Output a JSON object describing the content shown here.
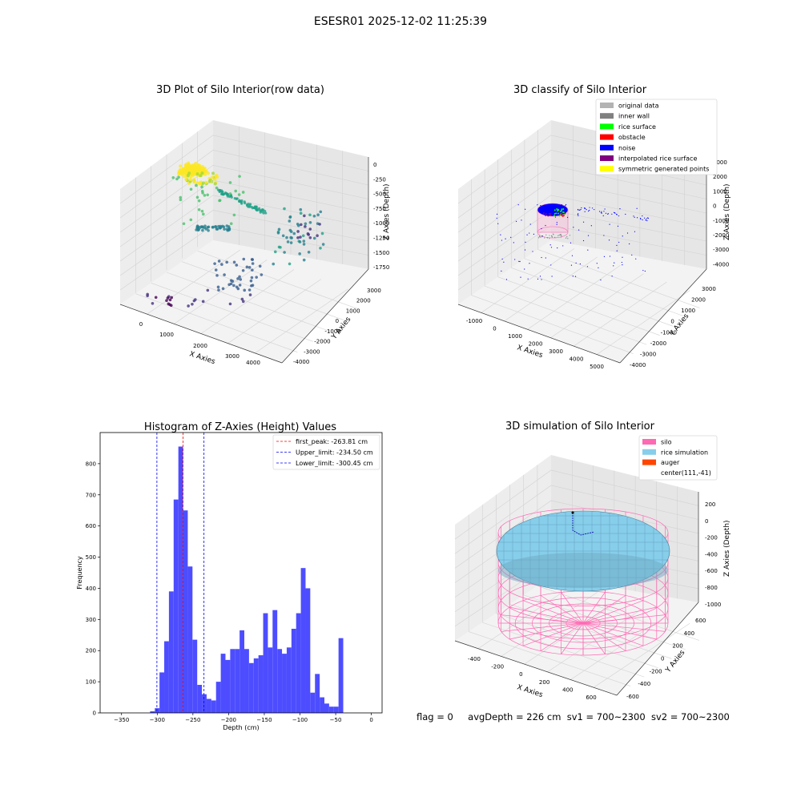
{
  "figure_title": "ESESR01 2025-12-02 11:25:39",
  "status": {
    "flag": "flag = 0",
    "avg_depth": "avgDepth = 226 cm",
    "sv1": "sv1 = 700~2300",
    "sv2": "sv2 = 700~2300"
  },
  "chart_data": [
    {
      "type": "scatter",
      "title": "3D Plot of Silo Interior(row data)",
      "xlabel": "X Axies",
      "ylabel": "Y Axies",
      "zlabel": "Z Axies (Depth)",
      "x_ticks": [
        "0",
        "1000",
        "2000",
        "3000",
        "4000"
      ],
      "y_ticks": [
        "-4000",
        "-3000",
        "-2000",
        "-1000",
        "0",
        "1000",
        "2000",
        "3000"
      ],
      "z_ticks": [
        "0",
        "-250",
        "-500",
        "-750",
        "-1000",
        "-1250",
        "-1500",
        "-1750"
      ],
      "xlim": [
        -500,
        4500
      ],
      "ylim": [
        -4500,
        3500
      ],
      "zlim": [
        -1900,
        100
      ],
      "colormap": "viridis",
      "grid": true
    },
    {
      "type": "scatter",
      "title": "3D classify of Silo Interior",
      "xlabel": "X Axies",
      "ylabel": "Y Axies",
      "zlabel": "Z Axies (Depth)",
      "x_ticks": [
        "-1000",
        "0",
        "1000",
        "2000",
        "3000",
        "4000",
        "5000"
      ],
      "y_ticks": [
        "-4000",
        "-3000",
        "-2000",
        "-1000",
        "0",
        "1000",
        "2000",
        "3000"
      ],
      "z_ticks": [
        "3000",
        "2000",
        "1000",
        "0",
        "-1000",
        "-2000",
        "-3000",
        "-4000"
      ],
      "legend_position": "top-right",
      "legend": [
        {
          "label": "original data",
          "color": "#b3b3b3"
        },
        {
          "label": "inner wall",
          "color": "#808080"
        },
        {
          "label": "rice surface",
          "color": "#00ff00"
        },
        {
          "label": "obstacle",
          "color": "#ff0000"
        },
        {
          "label": "noise",
          "color": "#0000ff"
        },
        {
          "label": "interpolated rice surface",
          "color": "#800080"
        },
        {
          "label": "symmetric generated points",
          "color": "#ffff00"
        }
      ],
      "grid": true
    },
    {
      "type": "bar",
      "title": "Histogram of Z-Axies (Height) Values",
      "xlabel": "Depth (cm)",
      "ylabel": "Frequency",
      "xlim": [
        -380,
        15
      ],
      "ylim": [
        0,
        900
      ],
      "x_ticks": [
        -350,
        -300,
        -250,
        -200,
        -150,
        -100,
        -50,
        0
      ],
      "y_ticks": [
        0,
        100,
        200,
        300,
        400,
        500,
        600,
        700,
        800
      ],
      "bin_width": 6.6,
      "bin_start": -310,
      "values": [
        5,
        15,
        130,
        230,
        390,
        685,
        855,
        650,
        470,
        235,
        90,
        60,
        45,
        40,
        100,
        190,
        170,
        205,
        205,
        265,
        205,
        160,
        175,
        185,
        320,
        210,
        330,
        205,
        190,
        210,
        270,
        320,
        465,
        400,
        65,
        125,
        50,
        30,
        20,
        20,
        240
      ],
      "lines": [
        {
          "label": "first_peak: -263.81 cm",
          "value": -263.81,
          "color": "#ff0000"
        },
        {
          "label": "Upper_limit: -234.50 cm",
          "value": -234.5,
          "color": "#0000ff"
        },
        {
          "label": "Lower_limit: -300.45 cm",
          "value": -300.45,
          "color": "#0000ff"
        }
      ],
      "bar_color": "#4d4dff",
      "legend_position": "top-right"
    },
    {
      "type": "scatter",
      "title": "3D simulation of Silo Interior",
      "xlabel": "X Axies",
      "ylabel": "Y Axies",
      "zlabel": "Z Axies (Depth)",
      "x_ticks": [
        "-400",
        "-200",
        "0",
        "200",
        "400",
        "600"
      ],
      "y_ticks": [
        "-600",
        "-400",
        "-200",
        "0",
        "200",
        "400",
        "600"
      ],
      "z_ticks": [
        "200",
        "0",
        "-200",
        "-400",
        "-600",
        "-800",
        "-1000"
      ],
      "legend_position": "top-right",
      "legend": [
        {
          "label": "silo",
          "color": "#ff69b4"
        },
        {
          "label": "rice simulation",
          "color": "#87ceeb"
        },
        {
          "label": "auger",
          "color": "#ff4500"
        },
        {
          "label": "center(111,-41)",
          "color": ""
        }
      ],
      "grid": true
    }
  ]
}
